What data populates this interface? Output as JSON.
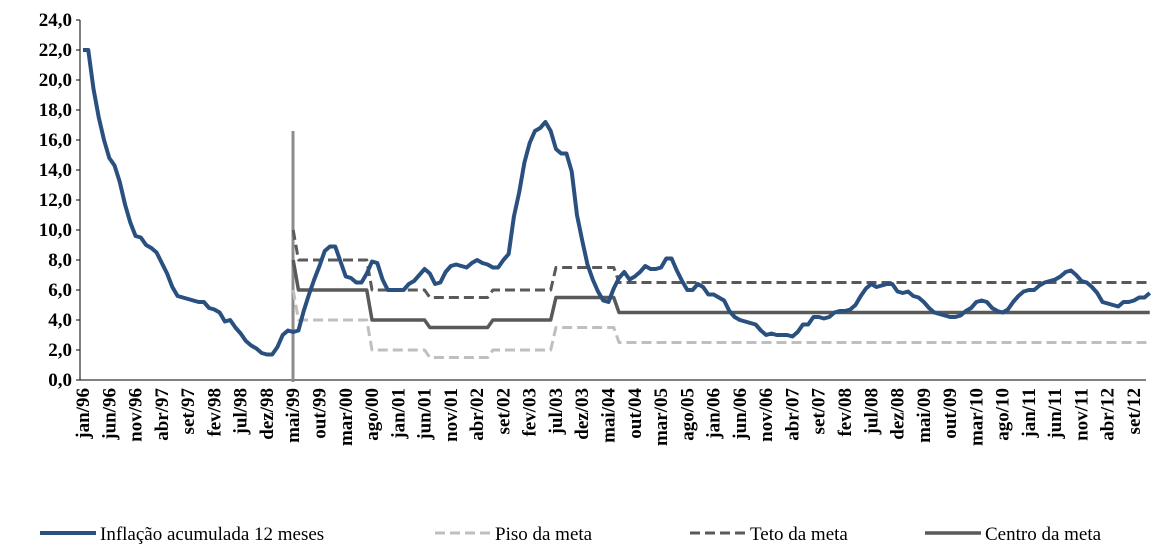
{
  "chart_data": {
    "type": "line",
    "categories": [
      "jan/96",
      null,
      null,
      null,
      null,
      "jun/96",
      null,
      null,
      null,
      null,
      "nov/96",
      null,
      null,
      null,
      null,
      "abr/97",
      null,
      null,
      null,
      null,
      "set/97",
      null,
      null,
      null,
      null,
      "fev/98",
      null,
      null,
      null,
      null,
      "jul/98",
      null,
      null,
      null,
      null,
      "dez/98",
      null,
      null,
      null,
      null,
      "mai/99",
      null,
      null,
      null,
      null,
      "out/99",
      null,
      null,
      null,
      null,
      "mar/00",
      null,
      null,
      null,
      null,
      "ago/00",
      null,
      null,
      null,
      null,
      "jan/01",
      null,
      null,
      null,
      null,
      "jun/01",
      null,
      null,
      null,
      null,
      "nov/01",
      null,
      null,
      null,
      null,
      "abr/02",
      null,
      null,
      null,
      null,
      "set/02",
      null,
      null,
      null,
      null,
      "fev/03",
      null,
      null,
      null,
      null,
      "jul/03",
      null,
      null,
      null,
      null,
      "dez/03",
      null,
      null,
      null,
      null,
      "mai/04",
      null,
      null,
      null,
      null,
      "out/04",
      null,
      null,
      null,
      null,
      "mar/05",
      null,
      null,
      null,
      null,
      "ago/05",
      null,
      null,
      null,
      null,
      "jan/06",
      null,
      null,
      null,
      null,
      "jun/06",
      null,
      null,
      null,
      null,
      "nov/06",
      null,
      null,
      null,
      null,
      "abr/07",
      null,
      null,
      null,
      null,
      "set/07",
      null,
      null,
      null,
      null,
      "fev/08",
      null,
      null,
      null,
      null,
      "jul/08",
      null,
      null,
      null,
      null,
      "dez/08",
      null,
      null,
      null,
      null,
      "mai/09",
      null,
      null,
      null,
      null,
      "out/09",
      null,
      null,
      null,
      null,
      "mar/10",
      null,
      null,
      null,
      null,
      "ago/10",
      null,
      null,
      null,
      null,
      "jan/11",
      null,
      null,
      null,
      null,
      "jun/11",
      null,
      null,
      null,
      null,
      "nov/11",
      null,
      null,
      null,
      null,
      "abr/12",
      null,
      null,
      null,
      null,
      "set/12",
      null,
      null,
      null
    ],
    "series": [
      {
        "name": "Inflação acumulada 12 meses",
        "color": "#2a5080",
        "style": "solid",
        "width": 4,
        "values": [
          22.0,
          22.0,
          19.4,
          17.5,
          16.0,
          14.8,
          14.3,
          13.2,
          11.7,
          10.5,
          9.6,
          9.5,
          9.0,
          8.8,
          8.5,
          7.8,
          7.1,
          6.2,
          5.6,
          5.5,
          5.4,
          5.3,
          5.2,
          5.2,
          4.8,
          4.7,
          4.5,
          3.9,
          4.0,
          3.5,
          3.1,
          2.6,
          2.3,
          2.1,
          1.8,
          1.7,
          1.7,
          2.2,
          3.0,
          3.3,
          3.2,
          3.3,
          4.6,
          5.7,
          6.7,
          7.6,
          8.6,
          8.9,
          8.9,
          7.9,
          6.9,
          6.8,
          6.5,
          6.5,
          7.1,
          7.9,
          7.8,
          6.7,
          6.0,
          6.0,
          6.0,
          6.0,
          6.4,
          6.6,
          7.0,
          7.4,
          7.1,
          6.4,
          6.5,
          7.2,
          7.6,
          7.7,
          7.6,
          7.5,
          7.8,
          8.0,
          7.8,
          7.7,
          7.5,
          7.5,
          8.0,
          8.4,
          10.9,
          12.5,
          14.5,
          15.8,
          16.6,
          16.8,
          17.2,
          16.6,
          15.4,
          15.1,
          15.1,
          13.9,
          11.0,
          9.3,
          7.7,
          6.7,
          5.9,
          5.3,
          5.2,
          6.1,
          6.8,
          7.2,
          6.7,
          6.9,
          7.2,
          7.6,
          7.4,
          7.4,
          7.5,
          8.1,
          8.1,
          7.3,
          6.6,
          6.0,
          6.0,
          6.4,
          6.2,
          5.7,
          5.7,
          5.5,
          5.3,
          4.6,
          4.2,
          4.0,
          3.9,
          3.8,
          3.7,
          3.3,
          3.0,
          3.1,
          3.0,
          3.0,
          3.0,
          2.9,
          3.2,
          3.7,
          3.7,
          4.2,
          4.2,
          4.1,
          4.2,
          4.5,
          4.6,
          4.6,
          4.7,
          5.0,
          5.6,
          6.1,
          6.4,
          6.2,
          6.3,
          6.4,
          6.4,
          5.9,
          5.8,
          5.9,
          5.6,
          5.5,
          5.2,
          4.8,
          4.5,
          4.4,
          4.3,
          4.2,
          4.2,
          4.3,
          4.6,
          4.8,
          5.2,
          5.3,
          5.2,
          4.8,
          4.6,
          4.5,
          4.7,
          5.2,
          5.6,
          5.9,
          6.0,
          6.0,
          6.3,
          6.5,
          6.6,
          6.7,
          6.9,
          7.2,
          7.3,
          7.0,
          6.6,
          6.5,
          6.2,
          5.8,
          5.2,
          5.1,
          5.0,
          4.9,
          5.2,
          5.2,
          5.3,
          5.5,
          5.5,
          5.8
        ]
      },
      {
        "name": "Piso da meta",
        "color": "#bfbfbf",
        "style": "dashed",
        "width": 3,
        "values": [
          null,
          null,
          null,
          null,
          null,
          null,
          null,
          null,
          null,
          null,
          null,
          null,
          null,
          null,
          null,
          null,
          null,
          null,
          null,
          null,
          null,
          null,
          null,
          null,
          null,
          null,
          null,
          null,
          null,
          null,
          null,
          null,
          null,
          null,
          null,
          null,
          null,
          null,
          null,
          null,
          6,
          4,
          4,
          4,
          4,
          4,
          4,
          4,
          4,
          4,
          4,
          4,
          4,
          4,
          4,
          2,
          2,
          2,
          2,
          2,
          2,
          2,
          2,
          2,
          2,
          2,
          1.5,
          1.5,
          1.5,
          1.5,
          1.5,
          1.5,
          1.5,
          1.5,
          1.5,
          1.5,
          1.5,
          1.5,
          2,
          2,
          2,
          2,
          2,
          2,
          2,
          2,
          2,
          2,
          2,
          2,
          3.5,
          3.5,
          3.5,
          3.5,
          3.5,
          3.5,
          3.5,
          3.5,
          3.5,
          3.5,
          3.5,
          3.5,
          2.5,
          2.5,
          2.5,
          2.5,
          2.5,
          2.5,
          2.5,
          2.5,
          2.5,
          2.5,
          2.5,
          2.5,
          2.5,
          2.5,
          2.5,
          2.5,
          2.5,
          2.5,
          2.5,
          2.5,
          2.5,
          2.5,
          2.5,
          2.5,
          2.5,
          2.5,
          2.5,
          2.5,
          2.5,
          2.5,
          2.5,
          2.5,
          2.5,
          2.5,
          2.5,
          2.5,
          2.5,
          2.5,
          2.5,
          2.5,
          2.5,
          2.5,
          2.5,
          2.5,
          2.5,
          2.5,
          2.5,
          2.5,
          2.5,
          2.5,
          2.5,
          2.5,
          2.5,
          2.5,
          2.5,
          2.5,
          2.5,
          2.5,
          2.5,
          2.5,
          2.5,
          2.5,
          2.5,
          2.5,
          2.5,
          2.5,
          2.5,
          2.5,
          2.5,
          2.5,
          2.5,
          2.5,
          2.5,
          2.5,
          2.5,
          2.5,
          2.5,
          2.5,
          2.5,
          2.5,
          2.5,
          2.5,
          2.5,
          2.5,
          2.5,
          2.5,
          2.5,
          2.5,
          2.5,
          2.5,
          2.5,
          2.5,
          2.5,
          2.5,
          2.5,
          2.5,
          2.5,
          2.5,
          2.5,
          2.5,
          2.5,
          2.5
        ]
      },
      {
        "name": "Teto da meta",
        "color": "#595959",
        "style": "dashed",
        "width": 3,
        "values": [
          null,
          null,
          null,
          null,
          null,
          null,
          null,
          null,
          null,
          null,
          null,
          null,
          null,
          null,
          null,
          null,
          null,
          null,
          null,
          null,
          null,
          null,
          null,
          null,
          null,
          null,
          null,
          null,
          null,
          null,
          null,
          null,
          null,
          null,
          null,
          null,
          null,
          null,
          null,
          null,
          10,
          8,
          8,
          8,
          8,
          8,
          8,
          8,
          8,
          8,
          8,
          8,
          8,
          8,
          8,
          6,
          6,
          6,
          6,
          6,
          6,
          6,
          6,
          6,
          6,
          6,
          5.5,
          5.5,
          5.5,
          5.5,
          5.5,
          5.5,
          5.5,
          5.5,
          5.5,
          5.5,
          5.5,
          5.5,
          6,
          6,
          6,
          6,
          6,
          6,
          6,
          6,
          6,
          6,
          6,
          6,
          7.5,
          7.5,
          7.5,
          7.5,
          7.5,
          7.5,
          7.5,
          7.5,
          7.5,
          7.5,
          7.5,
          7.5,
          6.5,
          6.5,
          6.5,
          6.5,
          6.5,
          6.5,
          6.5,
          6.5,
          6.5,
          6.5,
          6.5,
          6.5,
          6.5,
          6.5,
          6.5,
          6.5,
          6.5,
          6.5,
          6.5,
          6.5,
          6.5,
          6.5,
          6.5,
          6.5,
          6.5,
          6.5,
          6.5,
          6.5,
          6.5,
          6.5,
          6.5,
          6.5,
          6.5,
          6.5,
          6.5,
          6.5,
          6.5,
          6.5,
          6.5,
          6.5,
          6.5,
          6.5,
          6.5,
          6.5,
          6.5,
          6.5,
          6.5,
          6.5,
          6.5,
          6.5,
          6.5,
          6.5,
          6.5,
          6.5,
          6.5,
          6.5,
          6.5,
          6.5,
          6.5,
          6.5,
          6.5,
          6.5,
          6.5,
          6.5,
          6.5,
          6.5,
          6.5,
          6.5,
          6.5,
          6.5,
          6.5,
          6.5,
          6.5,
          6.5,
          6.5,
          6.5,
          6.5,
          6.5,
          6.5,
          6.5,
          6.5,
          6.5,
          6.5,
          6.5,
          6.5,
          6.5,
          6.5,
          6.5,
          6.5,
          6.5,
          6.5,
          6.5,
          6.5,
          6.5,
          6.5,
          6.5,
          6.5,
          6.5,
          6.5,
          6.5,
          6.5,
          6.5
        ]
      },
      {
        "name": "Centro da meta",
        "color": "#595959",
        "style": "solid",
        "width": 3.5,
        "values": [
          null,
          null,
          null,
          null,
          null,
          null,
          null,
          null,
          null,
          null,
          null,
          null,
          null,
          null,
          null,
          null,
          null,
          null,
          null,
          null,
          null,
          null,
          null,
          null,
          null,
          null,
          null,
          null,
          null,
          null,
          null,
          null,
          null,
          null,
          null,
          null,
          null,
          null,
          null,
          null,
          8,
          6,
          6,
          6,
          6,
          6,
          6,
          6,
          6,
          6,
          6,
          6,
          6,
          6,
          6,
          4,
          4,
          4,
          4,
          4,
          4,
          4,
          4,
          4,
          4,
          4,
          3.5,
          3.5,
          3.5,
          3.5,
          3.5,
          3.5,
          3.5,
          3.5,
          3.5,
          3.5,
          3.5,
          3.5,
          4,
          4,
          4,
          4,
          4,
          4,
          4,
          4,
          4,
          4,
          4,
          4,
          5.5,
          5.5,
          5.5,
          5.5,
          5.5,
          5.5,
          5.5,
          5.5,
          5.5,
          5.5,
          5.5,
          5.5,
          4.5,
          4.5,
          4.5,
          4.5,
          4.5,
          4.5,
          4.5,
          4.5,
          4.5,
          4.5,
          4.5,
          4.5,
          4.5,
          4.5,
          4.5,
          4.5,
          4.5,
          4.5,
          4.5,
          4.5,
          4.5,
          4.5,
          4.5,
          4.5,
          4.5,
          4.5,
          4.5,
          4.5,
          4.5,
          4.5,
          4.5,
          4.5,
          4.5,
          4.5,
          4.5,
          4.5,
          4.5,
          4.5,
          4.5,
          4.5,
          4.5,
          4.5,
          4.5,
          4.5,
          4.5,
          4.5,
          4.5,
          4.5,
          4.5,
          4.5,
          4.5,
          4.5,
          4.5,
          4.5,
          4.5,
          4.5,
          4.5,
          4.5,
          4.5,
          4.5,
          4.5,
          4.5,
          4.5,
          4.5,
          4.5,
          4.5,
          4.5,
          4.5,
          4.5,
          4.5,
          4.5,
          4.5,
          4.5,
          4.5,
          4.5,
          4.5,
          4.5,
          4.5,
          4.5,
          4.5,
          4.5,
          4.5,
          4.5,
          4.5,
          4.5,
          4.5,
          4.5,
          4.5,
          4.5,
          4.5,
          4.5,
          4.5,
          4.5,
          4.5,
          4.5,
          4.5,
          4.5,
          4.5,
          4.5,
          4.5,
          4.5,
          4.5
        ]
      }
    ],
    "ylim": [
      0,
      24
    ],
    "yticks": [
      {
        "value": 0,
        "label": "0,0"
      },
      {
        "value": 2,
        "label": "2,0"
      },
      {
        "value": 4,
        "label": "4,0"
      },
      {
        "value": 6,
        "label": "6,0"
      },
      {
        "value": 8,
        "label": "8,0"
      },
      {
        "value": 10,
        "label": "10,0"
      },
      {
        "value": 12,
        "label": "12,0"
      },
      {
        "value": 14,
        "label": "14,0"
      },
      {
        "value": 16,
        "label": "16,0"
      },
      {
        "value": 18,
        "label": "18,0"
      },
      {
        "value": 20,
        "label": "20,0"
      },
      {
        "value": 22,
        "label": "22,0"
      },
      {
        "value": 24,
        "label": "24,0"
      }
    ],
    "grid": false,
    "legend": "bottom"
  }
}
